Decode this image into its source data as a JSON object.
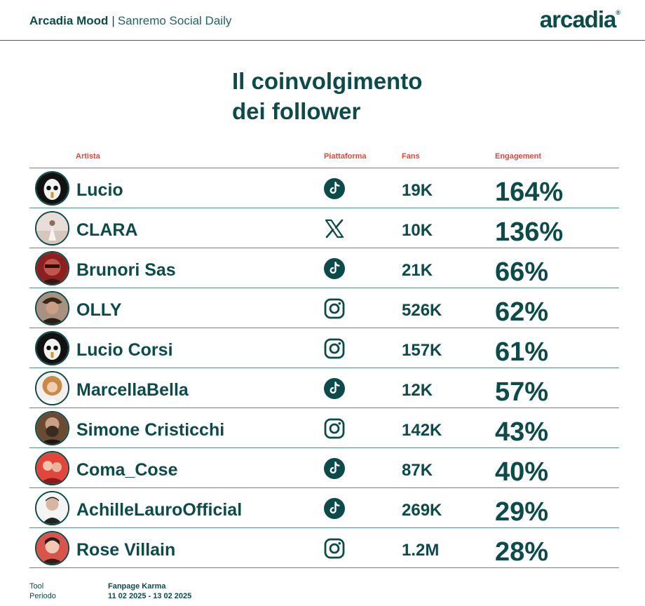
{
  "header": {
    "brand": "Arcadia Mood",
    "separator": "|",
    "subtitle": "Sanremo Social Daily",
    "logo": "arcadia",
    "logo_mark": "®"
  },
  "title": {
    "line1": "Il coinvolgimento",
    "line2": "dei follower"
  },
  "columns": {
    "artist": "Artista",
    "platform": "Piattaforma",
    "fans": "Fans",
    "engagement": "Engagement"
  },
  "rows": [
    {
      "artist": "Lucio",
      "platform_icon": "tiktok-icon",
      "fans": "19K",
      "engagement": "164%"
    },
    {
      "artist": "CLARA",
      "platform_icon": "x-icon",
      "fans": "10K",
      "engagement": "136%"
    },
    {
      "artist": "Brunori Sas",
      "platform_icon": "tiktok-icon",
      "fans": "21K",
      "engagement": "66%"
    },
    {
      "artist": "OLLY",
      "platform_icon": "instagram-icon",
      "fans": "526K",
      "engagement": "62%"
    },
    {
      "artist": "Lucio Corsi",
      "platform_icon": "instagram-icon",
      "fans": "157K",
      "engagement": "61%"
    },
    {
      "artist": "MarcellaBella",
      "platform_icon": "tiktok-icon",
      "fans": "12K",
      "engagement": "57%"
    },
    {
      "artist": "Simone Cristicchi",
      "platform_icon": "instagram-icon",
      "fans": "142K",
      "engagement": "43%"
    },
    {
      "artist": "Coma_Cose",
      "platform_icon": "tiktok-icon",
      "fans": "87K",
      "engagement": "40%"
    },
    {
      "artist": "AchilleLauroOfficial",
      "platform_icon": "tiktok-icon",
      "fans": "269K",
      "engagement": "29%"
    },
    {
      "artist": "Rose Villain",
      "platform_icon": "instagram-icon",
      "fans": "1.2M",
      "engagement": "28%"
    }
  ],
  "footer": {
    "tool_label": "Tool",
    "tool_value": "Fanpage Karma",
    "period_label": "Periodo",
    "period_value": "11 02 2025 - 13 02 2025"
  },
  "colors": {
    "primary": "#0d4a4a",
    "accent": "#e0463b"
  }
}
